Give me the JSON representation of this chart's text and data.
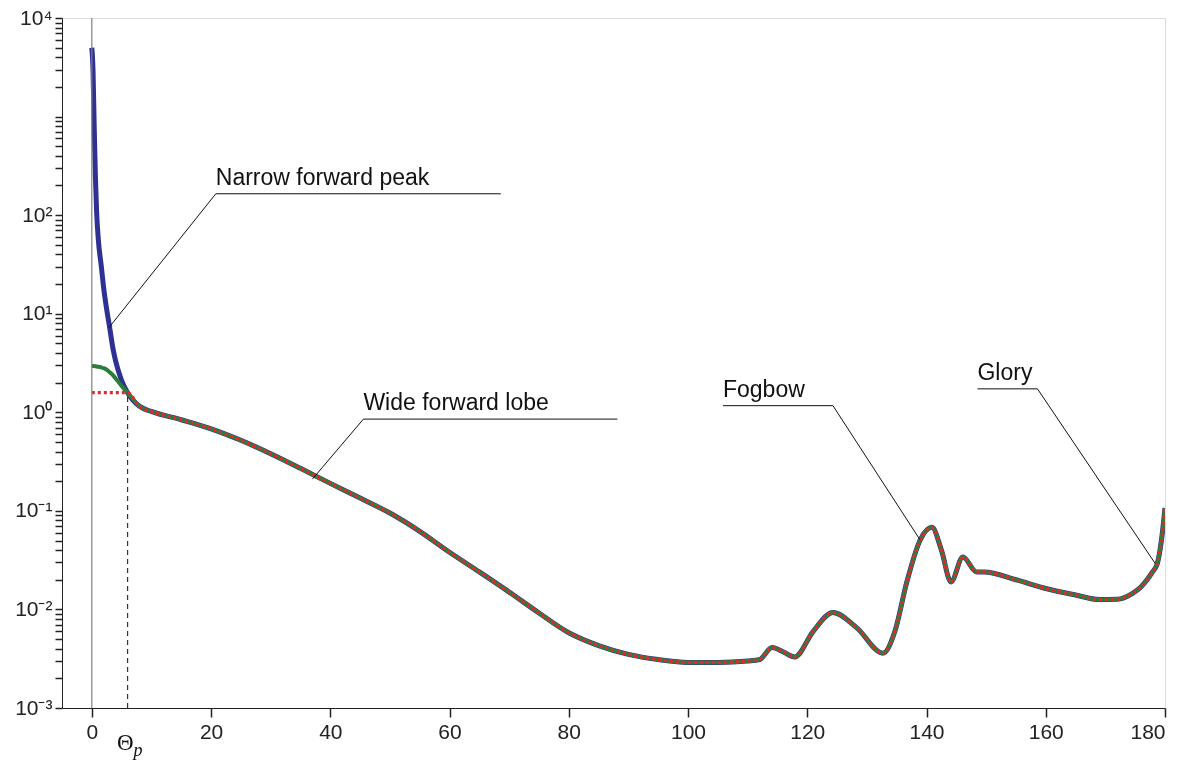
{
  "chart_data": {
    "type": "line",
    "x": [
      0,
      0.2,
      0.4,
      0.6,
      0.8,
      1.1,
      1.6,
      2,
      2.5,
      3,
      3.5,
      4,
      5,
      6,
      8,
      10,
      15,
      20,
      25,
      30,
      35,
      40,
      45,
      50,
      55,
      60,
      65,
      70,
      75,
      80,
      85,
      90,
      95,
      100,
      105,
      110,
      112,
      114.1,
      116,
      117.9,
      121,
      124.3,
      128.3,
      132.7,
      134.7,
      136.7,
      138.9,
      140.9,
      142.5,
      144.1,
      146.1,
      148.4,
      149.7,
      155,
      160,
      165,
      169,
      172,
      174.5,
      176,
      177.9,
      178.7,
      179.5,
      180
    ],
    "series": [
      {
        "color": "#2e3192",
        "line_style": "solid",
        "values": [
          5000,
          3000,
          800,
          250,
          110,
          56,
          30,
          18,
          11,
          7.2,
          4.6,
          3.3,
          2.1,
          1.58,
          1.15,
          1.02,
          0.84,
          0.68,
          0.52,
          0.38,
          0.27,
          0.19,
          0.135,
          0.095,
          0.062,
          0.038,
          0.024,
          0.015,
          0.0092,
          0.0058,
          0.0043,
          0.0035,
          0.0031,
          0.0029,
          0.0029,
          0.003,
          0.0031,
          0.0041,
          0.0037,
          0.0033,
          0.006,
          0.0093,
          0.0065,
          0.0036,
          0.006,
          0.019,
          0.05,
          0.068,
          0.04,
          0.019,
          0.034,
          0.024,
          0.024,
          0.02,
          0.0163,
          0.014,
          0.0126,
          0.0127,
          0.0145,
          0.017,
          0.024,
          0.029,
          0.056,
          0.107
        ]
      },
      {
        "color": "#2b7d3c",
        "line_style": "solid",
        "values": [
          2.95,
          2.95,
          2.94,
          2.93,
          2.92,
          2.9,
          2.85,
          2.8,
          2.7,
          2.55,
          2.4,
          2.2,
          1.85,
          1.58,
          1.15,
          1.02,
          0.84,
          0.68,
          0.52,
          0.38,
          0.27,
          0.19,
          0.135,
          0.095,
          0.062,
          0.038,
          0.024,
          0.015,
          0.0092,
          0.0058,
          0.0043,
          0.0035,
          0.0031,
          0.0029,
          0.0029,
          0.003,
          0.0031,
          0.0041,
          0.0037,
          0.0033,
          0.006,
          0.0093,
          0.0065,
          0.0036,
          0.006,
          0.019,
          0.05,
          0.068,
          0.04,
          0.019,
          0.034,
          0.024,
          0.024,
          0.02,
          0.0163,
          0.014,
          0.0126,
          0.0127,
          0.0145,
          0.017,
          0.024,
          0.029,
          0.056,
          0.107
        ]
      },
      {
        "color": "#e8262a",
        "line_style": "dotted",
        "values": [
          1.58,
          1.58,
          1.58,
          1.58,
          1.58,
          1.58,
          1.58,
          1.58,
          1.58,
          1.58,
          1.58,
          1.58,
          1.58,
          1.58,
          1.15,
          1.02,
          0.84,
          0.68,
          0.52,
          0.38,
          0.27,
          0.19,
          0.135,
          0.095,
          0.062,
          0.038,
          0.024,
          0.015,
          0.0092,
          0.0058,
          0.0043,
          0.0035,
          0.0031,
          0.0029,
          0.0029,
          0.003,
          0.0031,
          0.0041,
          0.0037,
          0.0033,
          0.006,
          0.0093,
          0.0065,
          0.0036,
          0.006,
          0.019,
          0.05,
          0.068,
          0.04,
          0.019,
          0.034,
          0.024,
          0.024,
          0.02,
          0.0163,
          0.014,
          0.0126,
          0.0127,
          0.0145,
          0.017,
          0.024,
          0.029,
          0.056,
          0.107
        ]
      }
    ],
    "log": "y",
    "xlim": [
      -5,
      180
    ],
    "xticks": [
      0,
      20,
      40,
      60,
      80,
      100,
      120,
      140,
      160,
      180
    ],
    "ylim": [
      0.001,
      10000
    ],
    "yticks": [
      {
        "value": 0.001,
        "label": "10⁻³"
      },
      {
        "value": 0.002,
        "label": null
      },
      {
        "value": 0.003,
        "label": null
      },
      {
        "value": 0.004,
        "label": null
      },
      {
        "value": 0.005,
        "label": null
      },
      {
        "value": 0.006,
        "label": null
      },
      {
        "value": 0.007,
        "label": null
      },
      {
        "value": 0.008,
        "label": null
      },
      {
        "value": 0.009,
        "label": null
      },
      {
        "value": 0.01,
        "label": "10⁻²"
      },
      {
        "value": 0.02,
        "label": null
      },
      {
        "value": 0.03,
        "label": null
      },
      {
        "value": 0.04,
        "label": null
      },
      {
        "value": 0.05,
        "label": null
      },
      {
        "value": 0.06,
        "label": null
      },
      {
        "value": 0.07,
        "label": null
      },
      {
        "value": 0.08,
        "label": null
      },
      {
        "value": 0.09,
        "label": null
      },
      {
        "value": 0.1,
        "label": "10⁻¹"
      },
      {
        "value": 0.2,
        "label": null
      },
      {
        "value": 0.3,
        "label": null
      },
      {
        "value": 0.4,
        "label": null
      },
      {
        "value": 0.5,
        "label": null
      },
      {
        "value": 0.6,
        "label": null
      },
      {
        "value": 0.7,
        "label": null
      },
      {
        "value": 0.8,
        "label": null
      },
      {
        "value": 0.9,
        "label": null
      },
      {
        "value": 1,
        "label": "10⁰"
      },
      {
        "value": 2,
        "label": null
      },
      {
        "value": 3,
        "label": null
      },
      {
        "value": 4,
        "label": null
      },
      {
        "value": 5,
        "label": null
      },
      {
        "value": 6,
        "label": null
      },
      {
        "value": 7,
        "label": null
      },
      {
        "value": 8,
        "label": null
      },
      {
        "value": 9,
        "label": null
      },
      {
        "value": 10,
        "label": "10¹"
      },
      {
        "value": 20,
        "label": null
      },
      {
        "value": 30,
        "label": null
      },
      {
        "value": 40,
        "label": null
      },
      {
        "value": 50,
        "label": null
      },
      {
        "value": 60,
        "label": null
      },
      {
        "value": 70,
        "label": null
      },
      {
        "value": 80,
        "label": null
      },
      {
        "value": 90,
        "label": null
      },
      {
        "value": 100,
        "label": "10²"
      },
      {
        "value": 200,
        "label": null
      },
      {
        "value": 300,
        "label": null
      },
      {
        "value": 400,
        "label": null
      },
      {
        "value": 500,
        "label": null
      },
      {
        "value": 600,
        "label": null
      },
      {
        "value": 700,
        "label": null
      },
      {
        "value": 800,
        "label": null
      },
      {
        "value": 900,
        "label": null
      },
      {
        "value": 1000,
        "label": null
      },
      {
        "value": 2000,
        "label": null
      },
      {
        "value": 3000,
        "label": null
      },
      {
        "value": 4000,
        "label": null
      },
      {
        "value": 5000,
        "label": null
      },
      {
        "value": 6000,
        "label": null
      },
      {
        "value": 7000,
        "label": null
      },
      {
        "value": 8000,
        "label": null
      },
      {
        "value": 9000,
        "label": null
      },
      {
        "value": 10000,
        "label": "10⁴"
      }
    ],
    "grid": false,
    "marker": "none",
    "ref_lines": [
      {
        "axis": "x",
        "value": 0,
        "label": null,
        "color": "#808080",
        "line_style": "solid"
      },
      {
        "axis": "x",
        "value": 6,
        "label": "Θ$_{p}$",
        "color": "#333333",
        "line_style": "dashed"
      }
    ],
    "annotations": [
      {
        "text": "Narrow forward peak",
        "x": 2.85,
        "y": 7.2
      },
      {
        "text": "Wide forward lobe",
        "x": 37,
        "y": 0.21
      },
      {
        "text": "Fogbow",
        "x": 138.9,
        "y": 0.051
      },
      {
        "text": "Glory",
        "x": 178.4,
        "y": 0.029
      }
    ]
  }
}
